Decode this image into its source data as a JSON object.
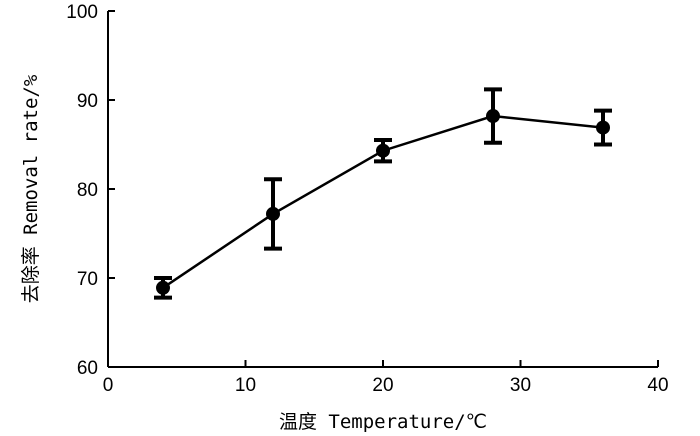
{
  "chart_data": {
    "type": "line",
    "title": "",
    "xlabel": "温度 Temperature/℃",
    "ylabel": "去除率 Removal rate/%",
    "xlim": [
      0,
      40
    ],
    "ylim": [
      60,
      100
    ],
    "xticks": [
      0,
      10,
      20,
      30,
      40
    ],
    "yticks": [
      60,
      70,
      80,
      90,
      100
    ],
    "grid": false,
    "series": [
      {
        "x": [
          4,
          12,
          20,
          28,
          36
        ],
        "y": [
          68.9,
          77.2,
          84.3,
          88.2,
          86.9
        ],
        "error": [
          1.1,
          3.9,
          1.2,
          3.0,
          1.9
        ],
        "marker": "circle",
        "color": "#000000"
      }
    ]
  }
}
